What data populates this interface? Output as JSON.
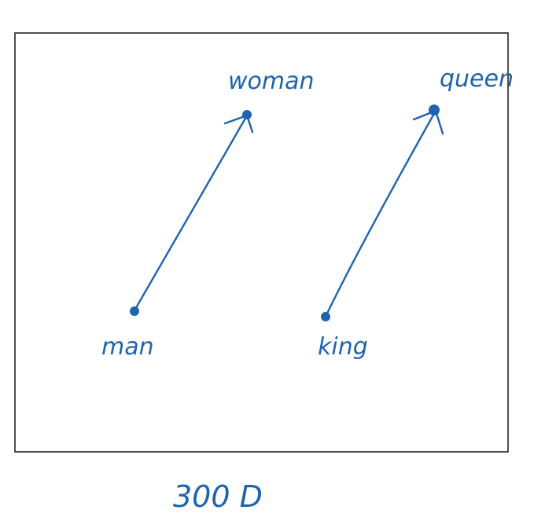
{
  "colors": {
    "ink": "#1f63ad",
    "frame": "#222222",
    "background": "#ffffff"
  },
  "labels": {
    "man": "man",
    "woman": "woman",
    "king": "king",
    "queen": "queen",
    "dimension": "300 D"
  }
}
